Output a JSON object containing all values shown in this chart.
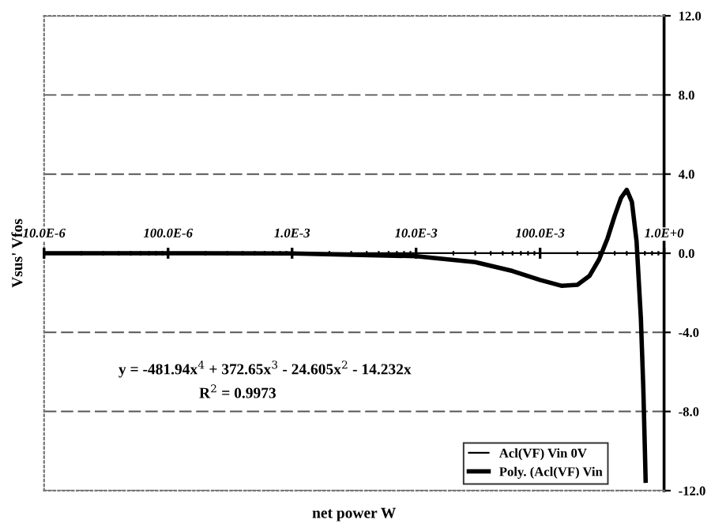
{
  "chart_data": {
    "type": "line",
    "xlabel": "net power W",
    "ylabel": "Vsus' Vfos",
    "annotations": [
      "y = -481.94x$^{4}$ + 372.65x$^{3}$ - 24.605x$^{2}$ - 14.232x",
      "R$^{2}$ = 0.9973"
    ],
    "log": "x",
    "xlim": [
      1e-05,
      1
    ],
    "xticks": [
      {
        "value": 1e-05,
        "label": "10.0E-6"
      },
      {
        "value": 0.0001,
        "label": "100.0E-6"
      },
      {
        "value": 0.001,
        "label": "1.0E-3"
      },
      {
        "value": 0.01,
        "label": "10.0E-3"
      },
      {
        "value": 0.1,
        "label": "100.0E-3"
      },
      {
        "value": 1,
        "label": "1.0E+0"
      }
    ],
    "ylim": [
      -12,
      12
    ],
    "yticks": [
      {
        "value": -12,
        "label": "-12.0"
      },
      {
        "value": -8,
        "label": "-8.0"
      },
      {
        "value": -4,
        "label": "-4.0"
      },
      {
        "value": 0,
        "label": "0.0"
      },
      {
        "value": 4,
        "label": "4.0"
      },
      {
        "value": 8,
        "label": "8.0"
      },
      {
        "value": 12,
        "label": "12.0"
      }
    ],
    "grid": "y",
    "legend": "bottom right",
    "marker": "none",
    "line_style": "solid",
    "series": [
      {
        "name": "Acl(VF) Vin 0V",
        "color": "#000000",
        "values": [
          null
        ]
      },
      {
        "name": "Poly. (Acl(VF) Vin",
        "color": "#000000",
        "x": [
          1e-05,
          0.0001,
          0.001,
          0.01,
          0.03,
          0.06,
          0.1,
          0.15,
          0.2,
          0.25,
          0.3,
          0.35,
          0.4,
          0.45,
          0.5,
          0.55,
          0.6,
          0.65,
          0.68,
          0.7,
          0.71
        ],
        "values": [
          0,
          0,
          -0.01,
          -0.15,
          -0.45,
          -0.9,
          -1.35,
          -1.65,
          -1.6,
          -1.15,
          -0.3,
          0.75,
          1.9,
          2.8,
          3.2,
          2.6,
          0.6,
          -3.3,
          -6.8,
          -9.9,
          -11.5
        ]
      }
    ]
  }
}
